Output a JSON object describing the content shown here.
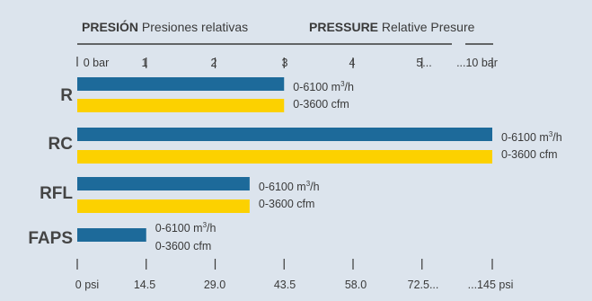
{
  "chart_data": {
    "type": "bar",
    "header": {
      "left_bold": "PRESIÓN",
      "left_rest": "Presiones relativas",
      "right_bold": "PRESSURE",
      "right_rest": "Relative Presure"
    },
    "top_ticks": [
      "0 bar",
      "1",
      "2",
      "3",
      "4",
      "5...",
      "...10 bar"
    ],
    "bottom_ticks": [
      "0 psi",
      "14.5",
      "29.0",
      "43.5",
      "58.0",
      "72.5...",
      "...145 psi"
    ],
    "categories": [
      "R",
      "RC",
      "RFL",
      "FAPS"
    ],
    "series": [
      {
        "values": [
          3,
          10,
          2.5,
          1
        ],
        "color": "#1d6a9a"
      },
      {
        "values": [
          3,
          10,
          2.5,
          null
        ],
        "color": "#fcd100"
      }
    ],
    "flow_labels": {
      "m3_prefix": "0-6100 m",
      "m3_sup": "3",
      "m3_suffix": "/h",
      "cfm": "0-3600 cfm"
    },
    "colors": {
      "background": "#dce4ed",
      "axis": "#3a3a3a",
      "text": "#3a3a3a",
      "category_text": "#444444"
    }
  }
}
